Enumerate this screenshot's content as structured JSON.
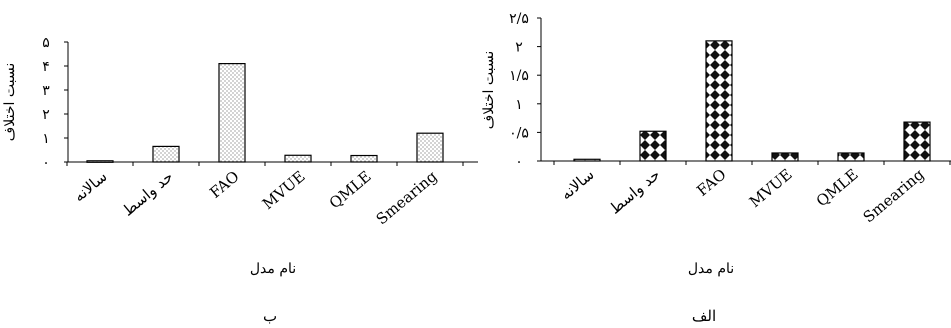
{
  "chart_data": [
    {
      "type": "bar",
      "panel_label": "ب",
      "xlabel": "نام مدل",
      "ylabel": "نسبت اختلاف",
      "categories": [
        "سالانه",
        "حد واسط",
        "FAO",
        "MVUE",
        "QMLE",
        "Smearing"
      ],
      "values": [
        0.05,
        0.65,
        4.1,
        0.28,
        0.27,
        1.2
      ],
      "ylim": [
        0,
        5
      ],
      "y_ticks": [
        0,
        1,
        2,
        3,
        4,
        5
      ],
      "y_tick_labels": [
        "۰",
        "۱",
        "۲",
        "۳",
        "۴",
        "۵"
      ],
      "bar_pattern": "dots",
      "grid": false
    },
    {
      "type": "bar",
      "panel_label": "الف",
      "xlabel": "نام مدل",
      "ylabel": "نسبت اختلاف",
      "categories": [
        "سالانه",
        "حد واسط",
        "FAO",
        "MVUE",
        "QMLE",
        "Smearing"
      ],
      "values": [
        0.03,
        0.52,
        2.1,
        0.14,
        0.14,
        0.68
      ],
      "ylim": [
        0,
        2.5
      ],
      "y_ticks": [
        0,
        0.5,
        1,
        1.5,
        2,
        2.5
      ],
      "y_tick_labels": [
        "۰",
        "۰/۵",
        "۱",
        "۱/۵",
        "۲",
        "۲/۵"
      ],
      "bar_pattern": "diamonds",
      "grid": false
    }
  ]
}
